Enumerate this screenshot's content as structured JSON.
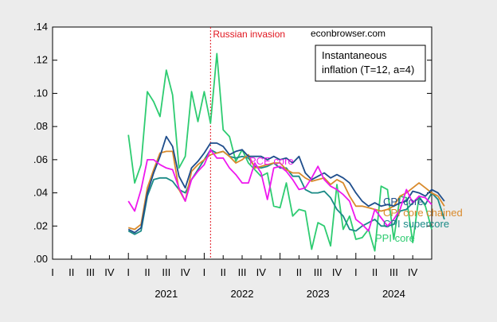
{
  "chart_data": {
    "type": "line",
    "title": "",
    "xlabel": "",
    "ylabel": "",
    "ylim": [
      0,
      0.14
    ],
    "y_ticks": [
      ".00",
      ".02",
      ".04",
      ".06",
      ".08",
      ".10",
      ".12",
      ".14"
    ],
    "y_tick_values": [
      0,
      0.02,
      0.04,
      0.06,
      0.08,
      0.1,
      0.12,
      0.14
    ],
    "x_start": "2020-01",
    "x_end": "2024-12",
    "quarter_labels": [
      "I",
      "II",
      "III",
      "IV",
      "I",
      "II",
      "III",
      "IV",
      "I",
      "II",
      "III",
      "IV",
      "I",
      "II",
      "III",
      "IV",
      "I",
      "II",
      "III",
      "IV"
    ],
    "year_labels": [
      "2021",
      "2022",
      "2023",
      "2024"
    ],
    "source": "econbrowser.com",
    "legend_lines": [
      "Instantaneous",
      "inflation (T=12, a=4)"
    ],
    "legend_placement": "top-right",
    "grid": false,
    "annotations": [
      {
        "text": "Russian invasion",
        "x": "2022-02",
        "color": "#e0141e"
      }
    ],
    "series": [
      {
        "name": "CPI core",
        "color": "#1f4e8c",
        "values": [
          0.018,
          0.016,
          0.019,
          0.04,
          0.052,
          0.062,
          0.074,
          0.068,
          0.05,
          0.043,
          0.055,
          0.059,
          0.064,
          0.07,
          0.07,
          0.068,
          0.063,
          0.065,
          0.066,
          0.062,
          0.062,
          0.062,
          0.06,
          0.062,
          0.06,
          0.061,
          0.058,
          0.062,
          0.052,
          0.048,
          0.05,
          0.052,
          0.049,
          0.051,
          0.049,
          0.046,
          0.04,
          0.035,
          0.032,
          0.034,
          0.032,
          0.033,
          0.032,
          0.034,
          0.035,
          0.041,
          0.04,
          0.038,
          0.042,
          0.04,
          0.035
        ]
      },
      {
        "name": "CPI core chained",
        "color": "#d98a2b",
        "values": [
          0.019,
          0.018,
          0.021,
          0.043,
          0.054,
          0.064,
          0.065,
          0.065,
          0.042,
          0.035,
          0.053,
          0.057,
          0.06,
          0.063,
          0.064,
          0.065,
          0.062,
          0.058,
          0.06,
          0.063,
          0.055,
          0.056,
          0.057,
          0.058,
          0.058,
          0.054,
          0.052,
          0.052,
          0.049,
          0.047,
          0.048,
          0.049,
          0.045,
          0.048,
          0.046,
          0.038,
          0.032,
          0.032,
          0.031,
          0.03,
          0.029,
          0.03,
          0.032,
          0.038,
          0.04,
          0.043,
          0.046,
          0.043,
          0.04,
          0.038,
          0.032
        ]
      },
      {
        "name": "CPI supercore",
        "color": "#1a8a86",
        "values": [
          0.017,
          0.015,
          0.017,
          0.038,
          0.048,
          0.049,
          0.049,
          0.047,
          0.042,
          0.04,
          0.048,
          0.054,
          0.06,
          0.066,
          0.064,
          0.065,
          0.062,
          0.061,
          0.062,
          0.061,
          0.056,
          0.055,
          0.056,
          0.058,
          0.055,
          0.055,
          0.05,
          0.05,
          0.042,
          0.04,
          0.04,
          0.041,
          0.037,
          0.03,
          0.026,
          0.018,
          0.017,
          0.02,
          0.022,
          0.024,
          0.02,
          0.02,
          0.021,
          0.029,
          0.03,
          0.034,
          0.037,
          0.033,
          0.04,
          0.036,
          0.024
        ]
      },
      {
        "name": "PCE core",
        "color": "#ee18ee",
        "values": [
          0.035,
          0.029,
          0.042,
          0.06,
          0.06,
          0.057,
          0.055,
          0.054,
          0.043,
          0.035,
          0.048,
          0.053,
          0.057,
          0.066,
          0.061,
          0.061,
          0.055,
          0.051,
          0.046,
          0.046,
          0.058,
          0.052,
          0.036,
          0.055,
          0.056,
          0.053,
          0.048,
          0.042,
          0.043,
          0.049,
          0.056,
          0.048,
          0.044,
          0.042,
          0.039,
          0.035,
          0.024,
          0.021,
          0.017,
          0.03,
          0.025,
          0.02,
          0.024,
          0.03,
          0.042,
          0.034,
          0.038,
          0.037,
          0.033
        ]
      },
      {
        "name": "PPI core",
        "color": "#2ecc71",
        "values": [
          0.075,
          0.046,
          0.057,
          0.101,
          0.095,
          0.086,
          0.114,
          0.099,
          0.055,
          0.062,
          0.101,
          0.083,
          0.101,
          0.082,
          0.124,
          0.078,
          0.074,
          0.059,
          0.066,
          0.058,
          0.054,
          0.05,
          0.052,
          0.032,
          0.031,
          0.046,
          0.026,
          0.03,
          0.029,
          0.006,
          0.022,
          0.02,
          0.008,
          0.045,
          0.018,
          0.026,
          0.012,
          0.013,
          0.018,
          0.005,
          0.044,
          0.042,
          0.012,
          0.038,
          0.037,
          0.01,
          0.038,
          0.032,
          0.018
        ]
      }
    ],
    "series_label_texts": {
      "cpi_core": "CPI core",
      "cpi_core_chained": "CPI core chained",
      "cpi_supercore": "CPI supercore",
      "pce_core": "PCE core",
      "ppi_core": "PPI core"
    }
  }
}
